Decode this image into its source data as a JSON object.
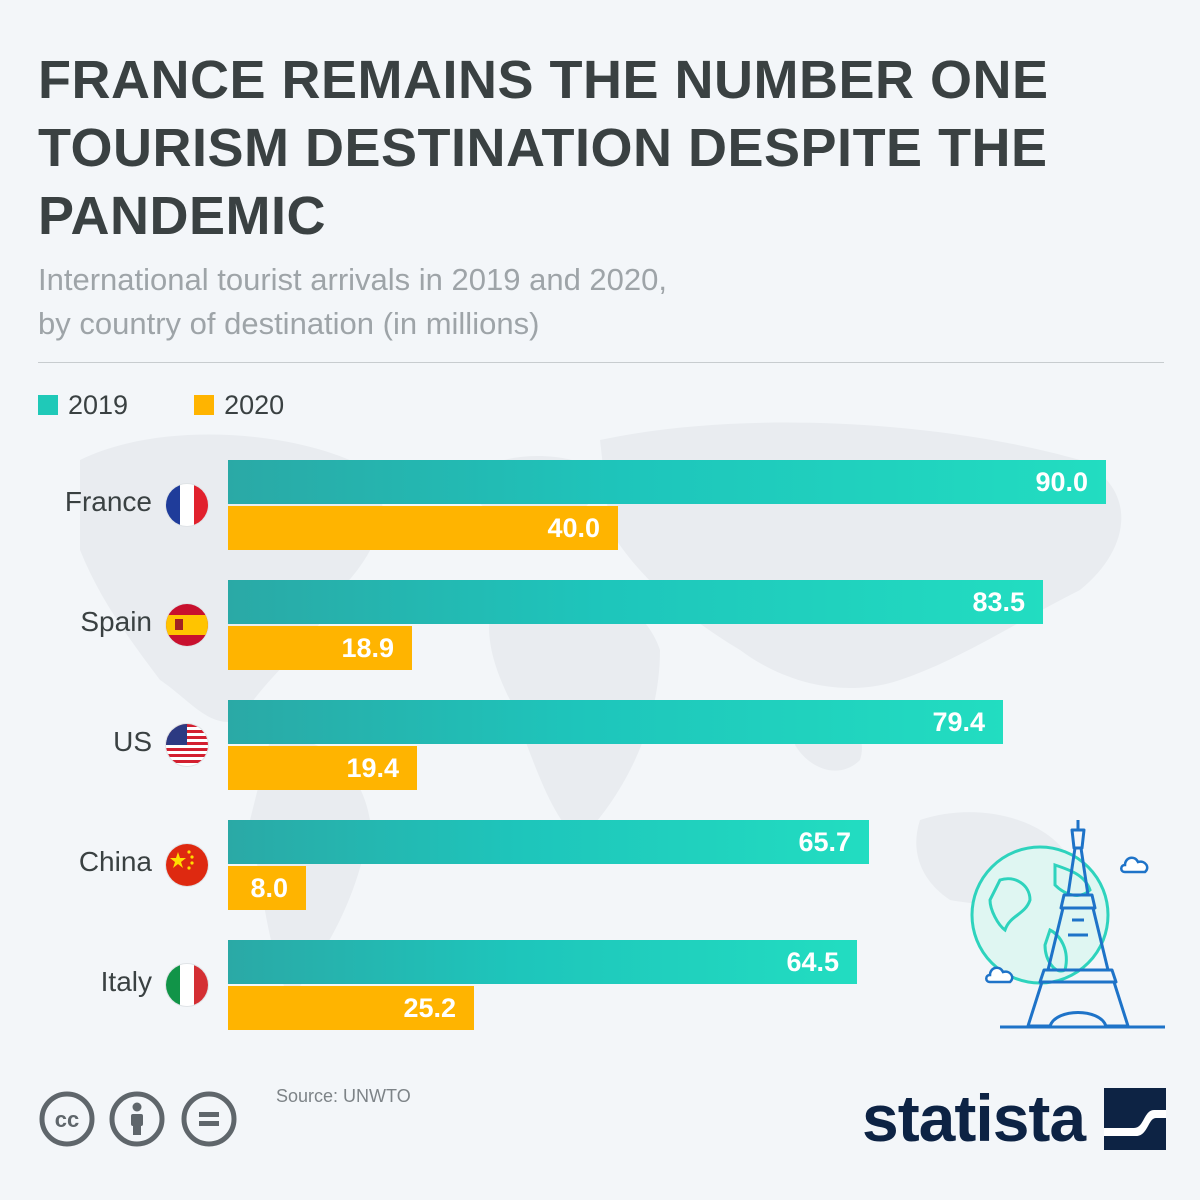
{
  "title": "FRANCE REMAINS THE NUMBER ONE TOURISM DESTINATION DESPITE THE PANDEMIC",
  "subtitle_line1": "International tourist arrivals in 2019 and 2020,",
  "subtitle_line2": "by country of destination (in millions)",
  "legend": [
    {
      "label": "2019",
      "color": "#1fc9b8"
    },
    {
      "label": "2020",
      "color": "#ffb400"
    }
  ],
  "chart_data": {
    "type": "bar",
    "orientation": "horizontal",
    "categories": [
      "France",
      "Spain",
      "US",
      "China",
      "Italy"
    ],
    "series": [
      {
        "name": "2019",
        "values": [
          90.0,
          83.5,
          79.4,
          65.7,
          64.5
        ],
        "labels": [
          "90.0",
          "83.5",
          "79.4",
          "65.7",
          "64.5"
        ],
        "color": "#1fc9b8"
      },
      {
        "name": "2020",
        "values": [
          40.0,
          18.9,
          19.4,
          8.0,
          25.2
        ],
        "labels": [
          "40.0",
          "18.9",
          "19.4",
          "8.0",
          "25.2"
        ],
        "color": "#ffb400"
      }
    ],
    "xlim": [
      0,
      90
    ],
    "grid": false,
    "legend_position": "top-left"
  },
  "flags": [
    "france-flag-icon",
    "spain-flag-icon",
    "us-flag-icon",
    "china-flag-icon",
    "italy-flag-icon"
  ],
  "source": "Source: UNWTO",
  "logo": "statista",
  "license_icons": [
    "creative-commons-icon",
    "attribution-icon",
    "no-derivatives-icon"
  ]
}
